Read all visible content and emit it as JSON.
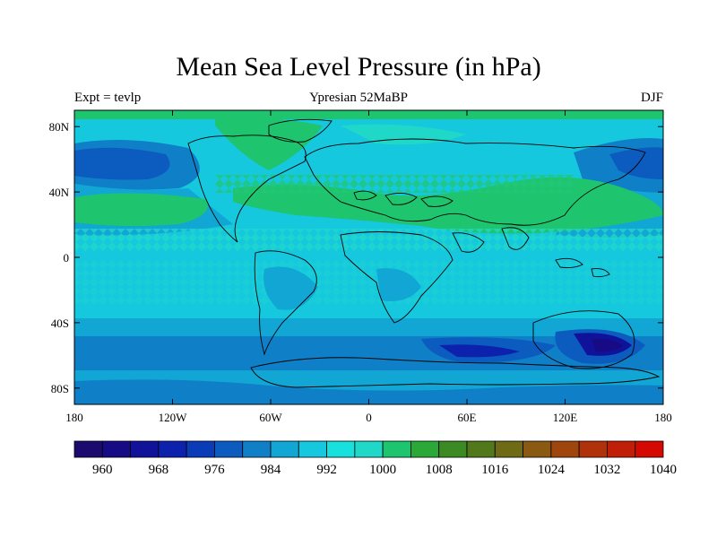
{
  "title": "Mean Sea Level Pressure (in hPa)",
  "subtitle_left": "Expt = tevlp",
  "subtitle_center": "Ypresian  52MaBP",
  "subtitle_right": "DJF",
  "map": {
    "lon_range": [
      -180,
      180
    ],
    "lat_range": [
      -90,
      90
    ],
    "lon_ticks": [
      {
        "value": -180,
        "label": "180"
      },
      {
        "value": -120,
        "label": "120W"
      },
      {
        "value": -60,
        "label": "60W"
      },
      {
        "value": 0,
        "label": "0"
      },
      {
        "value": 60,
        "label": "60E"
      },
      {
        "value": 120,
        "label": "120E"
      },
      {
        "value": 180,
        "label": "180"
      }
    ],
    "lat_ticks": [
      {
        "value": 80,
        "label": "80N"
      },
      {
        "value": 40,
        "label": "40N"
      },
      {
        "value": 0,
        "label": "0"
      },
      {
        "value": -40,
        "label": "40S"
      },
      {
        "value": -80,
        "label": "80S"
      }
    ]
  },
  "colorbar": {
    "colors": [
      "#1c0a6e",
      "#160b84",
      "#10129a",
      "#0c22ad",
      "#0a3cb8",
      "#0c5cc0",
      "#0f80c8",
      "#12a6d4",
      "#15c8de",
      "#18e0dc",
      "#20d8c8",
      "#1ec46e",
      "#2aa838",
      "#3c8a24",
      "#52781c",
      "#6e6a16",
      "#8a5a12",
      "#9e460e",
      "#b0320a",
      "#c01e06",
      "#d40a02"
    ],
    "labels": [
      {
        "index": 1,
        "text": "960"
      },
      {
        "index": 3,
        "text": "968"
      },
      {
        "index": 5,
        "text": "976"
      },
      {
        "index": 7,
        "text": "984"
      },
      {
        "index": 9,
        "text": "992"
      },
      {
        "index": 11,
        "text": "1000"
      },
      {
        "index": 13,
        "text": "1008"
      },
      {
        "index": 15,
        "text": "1016"
      },
      {
        "index": 17,
        "text": "1024"
      },
      {
        "index": 19,
        "text": "1032"
      },
      {
        "index": 21,
        "text": "1040"
      }
    ]
  }
}
